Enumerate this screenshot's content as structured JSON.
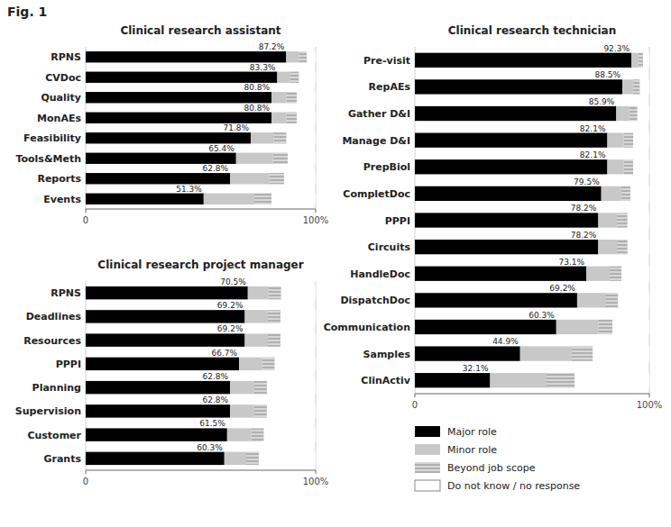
{
  "title": "Fig. 1",
  "chart_data": [
    {
      "type": "bar",
      "orientation": "horizontal",
      "stacked": true,
      "title": "Clinical research assistant",
      "categories": [
        "RPNS",
        "CVDoc",
        "Quality",
        "MonAEs",
        "Feasibility",
        "Tools&Meth",
        "Reports",
        "Events"
      ],
      "series": [
        {
          "name": "Major role",
          "color": "#000000",
          "values": [
            87.2,
            83.3,
            80.8,
            80.8,
            71.8,
            65.4,
            62.8,
            51.3
          ],
          "value_labels": [
            "87.2%",
            "83.3%",
            "80.8%",
            "80.8%",
            "71.8%",
            "65.4%",
            "62.8%",
            "51.3%"
          ]
        },
        {
          "name": "Minor role",
          "color": "#c8c8c8",
          "values": [
            5.5,
            5.5,
            6.5,
            6.5,
            10.0,
            16.0,
            17.0,
            22.0
          ]
        },
        {
          "name": "Beyond job scope",
          "color": "#b0b0b0",
          "values": [
            3.5,
            4.0,
            4.5,
            4.5,
            5.5,
            6.5,
            6.5,
            7.5
          ]
        },
        {
          "name": "Do not know / no response",
          "color": "#ffffff",
          "values": [
            3.8,
            7.2,
            8.2,
            8.2,
            12.7,
            12.1,
            13.7,
            19.2
          ]
        }
      ],
      "xlim": [
        0,
        100
      ],
      "xticks": [
        0,
        {
          "value": 100,
          "label": "100%"
        }
      ],
      "grid": true,
      "data_labels": true
    },
    {
      "type": "bar",
      "orientation": "horizontal",
      "stacked": true,
      "title": "Clinical research technician",
      "categories": [
        "Pre-visit",
        "RepAEs",
        "Gather D&I",
        "Manage D&I",
        "PrepBiol",
        "CompletDoc",
        "PPPI",
        "Circuits",
        "HandleDoc",
        "DispatchDoc",
        "Communication",
        "Samples",
        "ClinActiv"
      ],
      "series": [
        {
          "name": "Major role",
          "color": "#000000",
          "values": [
            92.3,
            88.5,
            85.9,
            82.1,
            82.1,
            79.5,
            78.2,
            78.2,
            73.1,
            69.2,
            60.3,
            44.9,
            32.1
          ],
          "value_labels": [
            "92.3%",
            "88.5%",
            "85.9%",
            "82.1%",
            "82.1%",
            "79.5%",
            "78.2%",
            "78.2%",
            "73.1%",
            "69.2%",
            "60.3%",
            "44.9%",
            "32.1%"
          ]
        },
        {
          "name": "Minor role",
          "color": "#c8c8c8",
          "values": [
            3.0,
            4.5,
            5.5,
            7.0,
            7.0,
            8.5,
            8.0,
            8.0,
            10.0,
            12.0,
            18.0,
            22.0,
            24.0
          ]
        },
        {
          "name": "Beyond job scope",
          "color": "#b0b0b0",
          "values": [
            2.0,
            3.0,
            3.5,
            4.0,
            4.0,
            4.0,
            4.5,
            4.5,
            5.0,
            5.5,
            6.0,
            9.0,
            12.0
          ]
        },
        {
          "name": "Do not know / no response",
          "color": "#ffffff",
          "values": [
            2.7,
            4.0,
            5.1,
            6.9,
            6.9,
            8.0,
            9.3,
            9.3,
            11.9,
            13.3,
            15.7,
            24.1,
            31.9
          ]
        }
      ],
      "xlim": [
        0,
        100
      ],
      "xticks": [
        0,
        {
          "value": 100,
          "label": "100%"
        }
      ],
      "grid": true,
      "data_labels": true,
      "legend": "lower right"
    },
    {
      "type": "bar",
      "orientation": "horizontal",
      "stacked": true,
      "title": "Clinical research project manager",
      "categories": [
        "RPNS",
        "Deadlines",
        "Resources",
        "PPPI",
        "Planning",
        "Supervision",
        "Customer",
        "Grants"
      ],
      "series": [
        {
          "name": "Major role",
          "color": "#000000",
          "values": [
            70.5,
            69.2,
            69.2,
            66.7,
            62.8,
            62.8,
            61.5,
            60.3
          ],
          "value_labels": [
            "70.5%",
            "69.2%",
            "69.2%",
            "66.7%",
            "62.8%",
            "62.8%",
            "61.5%",
            "60.3%"
          ]
        },
        {
          "name": "Minor role",
          "color": "#c8c8c8",
          "values": [
            9.0,
            10.0,
            10.0,
            10.0,
            10.5,
            10.5,
            10.5,
            9.5
          ]
        },
        {
          "name": "Beyond job scope",
          "color": "#b0b0b0",
          "values": [
            5.5,
            5.5,
            5.5,
            5.5,
            5.5,
            5.5,
            5.5,
            5.5
          ]
        },
        {
          "name": "Do not know / no response",
          "color": "#ffffff",
          "values": [
            15.0,
            15.3,
            15.3,
            17.8,
            21.2,
            21.2,
            22.5,
            24.7
          ]
        }
      ],
      "xlim": [
        0,
        100
      ],
      "xticks": [
        0,
        {
          "value": 100,
          "label": "100%"
        }
      ],
      "grid": true,
      "data_labels": true
    }
  ]
}
